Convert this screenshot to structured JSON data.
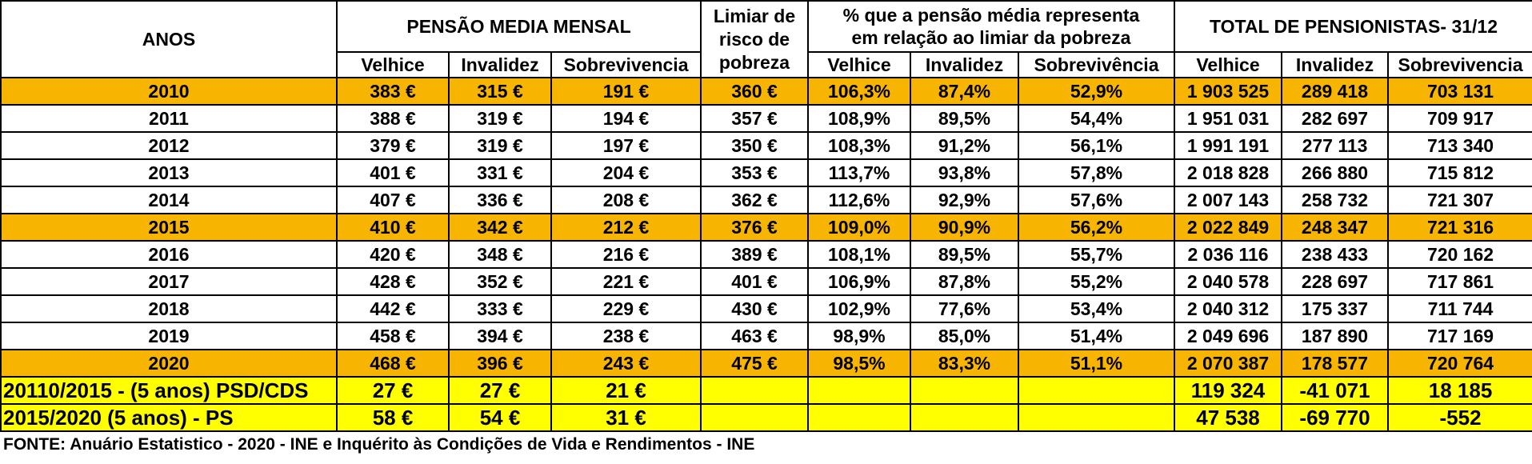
{
  "header": {
    "anos": "ANOS",
    "pensao": "PENSÃO MEDIA MENSAL",
    "limiar_line1": "Limiar de",
    "limiar_line2": "risco de",
    "limiar_line3": "pobreza",
    "pct_line1": "% que a pensão média representa",
    "pct_line2": "em relação ao limiar da pobreza",
    "total": "TOTAL DE PENSIONISTAS- 31/12",
    "pensao_cols": [
      "Velhice",
      "Invalidez",
      "Sobrevivencia"
    ],
    "pct_cols": [
      "Velhice",
      "Invalidez",
      "Sobrevivência"
    ],
    "total_cols": [
      "Velhice",
      "Invalidez",
      "Sobrevivencia"
    ]
  },
  "rows": [
    {
      "year": "2010",
      "pv": "383 €",
      "pi": "315 €",
      "ps": "191 €",
      "lim": "360 €",
      "qv": "106,3%",
      "qi": "87,4%",
      "qs": "52,9%",
      "tv": "1 903 525",
      "ti": "289 418",
      "ts": "703 131"
    },
    {
      "year": "2011",
      "pv": "388 €",
      "pi": "319 €",
      "ps": "194 €",
      "lim": "357 €",
      "qv": "108,9%",
      "qi": "89,5%",
      "qs": "54,4%",
      "tv": "1 951 031",
      "ti": "282 697",
      "ts": "709 917"
    },
    {
      "year": "2012",
      "pv": "379 €",
      "pi": "319 €",
      "ps": "197 €",
      "lim": "350 €",
      "qv": "108,3%",
      "qi": "91,2%",
      "qs": "56,1%",
      "tv": "1 991 191",
      "ti": "277 113",
      "ts": "713 340"
    },
    {
      "year": "2013",
      "pv": "401 €",
      "pi": "331 €",
      "ps": "204 €",
      "lim": "353 €",
      "qv": "113,7%",
      "qi": "93,8%",
      "qs": "57,8%",
      "tv": "2 018 828",
      "ti": "266 880",
      "ts": "715 812"
    },
    {
      "year": "2014",
      "pv": "407 €",
      "pi": "336 €",
      "ps": "208 €",
      "lim": "362 €",
      "qv": "112,6%",
      "qi": "92,9%",
      "qs": "57,6%",
      "tv": "2 007 143",
      "ti": "258 732",
      "ts": "721 307"
    },
    {
      "year": "2015",
      "pv": "410 €",
      "pi": "342 €",
      "ps": "212 €",
      "lim": "376 €",
      "qv": "109,0%",
      "qi": "90,9%",
      "qs": "56,2%",
      "tv": "2 022 849",
      "ti": "248 347",
      "ts": "721 316"
    },
    {
      "year": "2016",
      "pv": "420 €",
      "pi": "348 €",
      "ps": "216 €",
      "lim": "389 €",
      "qv": "108,1%",
      "qi": "89,5%",
      "qs": "55,7%",
      "tv": "2 036 116",
      "ti": "238 433",
      "ts": "720 162"
    },
    {
      "year": "2017",
      "pv": "428 €",
      "pi": "352 €",
      "ps": "221 €",
      "lim": "401 €",
      "qv": "106,9%",
      "qi": "87,8%",
      "qs": "55,2%",
      "tv": "2 040 578",
      "ti": "228 697",
      "ts": "717 861"
    },
    {
      "year": "2018",
      "pv": "442 €",
      "pi": "333 €",
      "ps": "229 €",
      "lim": "430 €",
      "qv": "102,9%",
      "qi": "77,6%",
      "qs": "53,4%",
      "tv": "2 040 312",
      "ti": "175 337",
      "ts": "711 744"
    },
    {
      "year": "2019",
      "pv": "458 €",
      "pi": "394 €",
      "ps": "238 €",
      "lim": "463 €",
      "qv": "98,9%",
      "qi": "85,0%",
      "qs": "51,4%",
      "tv": "2 049 696",
      "ti": "187 890",
      "ts": "717 169"
    },
    {
      "year": "2020",
      "pv": "468 €",
      "pi": "396 €",
      "ps": "243 €",
      "lim": "475 €",
      "qv": "98,5%",
      "qi": "83,3%",
      "qs": "51,1%",
      "tv": "2 070 387",
      "ti": "178 577",
      "ts": "720 764"
    }
  ],
  "summary": [
    {
      "label": "20110/2015 - (5 anos) PSD/CDS",
      "pv": "27 €",
      "pi": "27 €",
      "ps": "21 €",
      "tv": "119 324",
      "ti": "-41 071",
      "ts": "18 185"
    },
    {
      "label": "2015/2020 (5 anos) - PS",
      "pv": "58 €",
      "pi": "54 €",
      "ps": "31 €",
      "tv": "47 538",
      "ti": "-69 770",
      "ts": "-552"
    }
  ],
  "source": "FONTE: Anuário Estatistico - 2020 - INE e Inquérito às Condições de Vida e Rendimentos - INE",
  "colors": {
    "highlight": "#f7b400",
    "summary": "#ffff00"
  }
}
